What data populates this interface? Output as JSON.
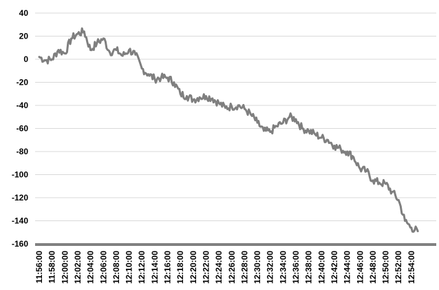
{
  "chart_data": {
    "type": "line",
    "title": "",
    "xlabel": "",
    "ylabel": "",
    "ylim": [
      -160,
      40
    ],
    "yticks": [
      "40",
      "20",
      "0",
      "-20",
      "-40",
      "-60",
      "-80",
      "-100",
      "-120",
      "-140",
      "-160"
    ],
    "xticks": [
      "11:56:00",
      "11:58:00",
      "12:00:00",
      "12:02:00",
      "12:04:00",
      "12:06:00",
      "12:08:00",
      "12:10:00",
      "12:12:00",
      "12:14:00",
      "12:16:00",
      "12:18:00",
      "12:20:00",
      "12:22:00",
      "12:24:00",
      "12:26:00",
      "12:28:00",
      "12:30:00",
      "12:32:00",
      "12:34:00",
      "12:36:00",
      "12:38:00",
      "12:40:00",
      "12:42:00",
      "12:44:00",
      "12:46:00",
      "12:48:00",
      "12:50:00",
      "12:52:00",
      "12:54:00"
    ],
    "grid": true,
    "legend": "none",
    "line_color": "#7f7f7f",
    "series": [
      {
        "x": [
          "11:56:00",
          "11:57:00",
          "11:58:00",
          "11:59:00",
          "12:00:00",
          "12:01:00",
          "12:02:00",
          "12:03:00",
          "12:04:00",
          "12:05:00",
          "12:06:00",
          "12:07:00",
          "12:08:00",
          "12:09:00",
          "12:10:00",
          "12:11:00",
          "12:12:00",
          "12:13:00",
          "12:14:00",
          "12:15:00",
          "12:16:00",
          "12:17:00",
          "12:18:00",
          "12:19:00",
          "12:20:00",
          "12:21:00",
          "12:22:00",
          "12:23:00",
          "12:24:00",
          "12:25:00",
          "12:26:00",
          "12:27:00",
          "12:28:00",
          "12:29:00",
          "12:30:00",
          "12:31:00",
          "12:32:00",
          "12:33:00",
          "12:34:00",
          "12:35:00",
          "12:36:00",
          "12:37:00",
          "12:38:00",
          "12:39:00",
          "12:40:00",
          "12:41:00",
          "12:42:00",
          "12:43:00",
          "12:44:00",
          "12:45:00",
          "12:46:00",
          "12:47:00",
          "12:48:00",
          "12:49:00",
          "12:50:00",
          "12:51:00",
          "12:52:00",
          "12:53:00",
          "12:54:00",
          "12:55:00"
        ],
        "values": [
          2,
          -1,
          0,
          8,
          5,
          18,
          22,
          24,
          8,
          14,
          18,
          6,
          8,
          3,
          8,
          4,
          -8,
          -13,
          -17,
          -16,
          -16,
          -20,
          -30,
          -32,
          -35,
          -33,
          -32,
          -34,
          -38,
          -42,
          -41,
          -40,
          -43,
          -48,
          -55,
          -62,
          -63,
          -58,
          -55,
          -50,
          -52,
          -60,
          -62,
          -65,
          -68,
          -70,
          -75,
          -78,
          -80,
          -85,
          -95,
          -97,
          -105,
          -107,
          -108,
          -115,
          -122,
          -140,
          -146,
          -149
        ]
      }
    ]
  }
}
